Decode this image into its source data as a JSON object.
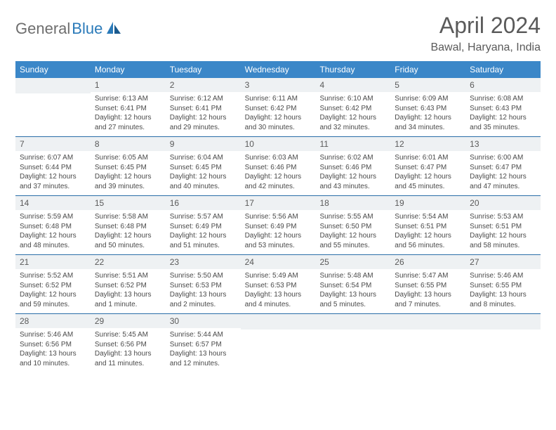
{
  "logo": {
    "part1": "General",
    "part2": "Blue"
  },
  "title": "April 2024",
  "location": "Bawal, Haryana, India",
  "colors": {
    "header_bg": "#3b87c8",
    "header_text": "#ffffff",
    "daynum_bg": "#eef1f3",
    "text": "#5a5a5a",
    "rule": "#2a6ea8",
    "logo_gray": "#6e6e6e",
    "logo_blue": "#2a7ab9"
  },
  "day_headers": [
    "Sunday",
    "Monday",
    "Tuesday",
    "Wednesday",
    "Thursday",
    "Friday",
    "Saturday"
  ],
  "weeks": [
    [
      {
        "blank": true
      },
      {
        "n": "1",
        "sr": "Sunrise: 6:13 AM",
        "ss": "Sunset: 6:41 PM",
        "dl": "Daylight: 12 hours and 27 minutes."
      },
      {
        "n": "2",
        "sr": "Sunrise: 6:12 AM",
        "ss": "Sunset: 6:41 PM",
        "dl": "Daylight: 12 hours and 29 minutes."
      },
      {
        "n": "3",
        "sr": "Sunrise: 6:11 AM",
        "ss": "Sunset: 6:42 PM",
        "dl": "Daylight: 12 hours and 30 minutes."
      },
      {
        "n": "4",
        "sr": "Sunrise: 6:10 AM",
        "ss": "Sunset: 6:42 PM",
        "dl": "Daylight: 12 hours and 32 minutes."
      },
      {
        "n": "5",
        "sr": "Sunrise: 6:09 AM",
        "ss": "Sunset: 6:43 PM",
        "dl": "Daylight: 12 hours and 34 minutes."
      },
      {
        "n": "6",
        "sr": "Sunrise: 6:08 AM",
        "ss": "Sunset: 6:43 PM",
        "dl": "Daylight: 12 hours and 35 minutes."
      }
    ],
    [
      {
        "n": "7",
        "sr": "Sunrise: 6:07 AM",
        "ss": "Sunset: 6:44 PM",
        "dl": "Daylight: 12 hours and 37 minutes."
      },
      {
        "n": "8",
        "sr": "Sunrise: 6:05 AM",
        "ss": "Sunset: 6:45 PM",
        "dl": "Daylight: 12 hours and 39 minutes."
      },
      {
        "n": "9",
        "sr": "Sunrise: 6:04 AM",
        "ss": "Sunset: 6:45 PM",
        "dl": "Daylight: 12 hours and 40 minutes."
      },
      {
        "n": "10",
        "sr": "Sunrise: 6:03 AM",
        "ss": "Sunset: 6:46 PM",
        "dl": "Daylight: 12 hours and 42 minutes."
      },
      {
        "n": "11",
        "sr": "Sunrise: 6:02 AM",
        "ss": "Sunset: 6:46 PM",
        "dl": "Daylight: 12 hours and 43 minutes."
      },
      {
        "n": "12",
        "sr": "Sunrise: 6:01 AM",
        "ss": "Sunset: 6:47 PM",
        "dl": "Daylight: 12 hours and 45 minutes."
      },
      {
        "n": "13",
        "sr": "Sunrise: 6:00 AM",
        "ss": "Sunset: 6:47 PM",
        "dl": "Daylight: 12 hours and 47 minutes."
      }
    ],
    [
      {
        "n": "14",
        "sr": "Sunrise: 5:59 AM",
        "ss": "Sunset: 6:48 PM",
        "dl": "Daylight: 12 hours and 48 minutes."
      },
      {
        "n": "15",
        "sr": "Sunrise: 5:58 AM",
        "ss": "Sunset: 6:48 PM",
        "dl": "Daylight: 12 hours and 50 minutes."
      },
      {
        "n": "16",
        "sr": "Sunrise: 5:57 AM",
        "ss": "Sunset: 6:49 PM",
        "dl": "Daylight: 12 hours and 51 minutes."
      },
      {
        "n": "17",
        "sr": "Sunrise: 5:56 AM",
        "ss": "Sunset: 6:49 PM",
        "dl": "Daylight: 12 hours and 53 minutes."
      },
      {
        "n": "18",
        "sr": "Sunrise: 5:55 AM",
        "ss": "Sunset: 6:50 PM",
        "dl": "Daylight: 12 hours and 55 minutes."
      },
      {
        "n": "19",
        "sr": "Sunrise: 5:54 AM",
        "ss": "Sunset: 6:51 PM",
        "dl": "Daylight: 12 hours and 56 minutes."
      },
      {
        "n": "20",
        "sr": "Sunrise: 5:53 AM",
        "ss": "Sunset: 6:51 PM",
        "dl": "Daylight: 12 hours and 58 minutes."
      }
    ],
    [
      {
        "n": "21",
        "sr": "Sunrise: 5:52 AM",
        "ss": "Sunset: 6:52 PM",
        "dl": "Daylight: 12 hours and 59 minutes."
      },
      {
        "n": "22",
        "sr": "Sunrise: 5:51 AM",
        "ss": "Sunset: 6:52 PM",
        "dl": "Daylight: 13 hours and 1 minute."
      },
      {
        "n": "23",
        "sr": "Sunrise: 5:50 AM",
        "ss": "Sunset: 6:53 PM",
        "dl": "Daylight: 13 hours and 2 minutes."
      },
      {
        "n": "24",
        "sr": "Sunrise: 5:49 AM",
        "ss": "Sunset: 6:53 PM",
        "dl": "Daylight: 13 hours and 4 minutes."
      },
      {
        "n": "25",
        "sr": "Sunrise: 5:48 AM",
        "ss": "Sunset: 6:54 PM",
        "dl": "Daylight: 13 hours and 5 minutes."
      },
      {
        "n": "26",
        "sr": "Sunrise: 5:47 AM",
        "ss": "Sunset: 6:55 PM",
        "dl": "Daylight: 13 hours and 7 minutes."
      },
      {
        "n": "27",
        "sr": "Sunrise: 5:46 AM",
        "ss": "Sunset: 6:55 PM",
        "dl": "Daylight: 13 hours and 8 minutes."
      }
    ],
    [
      {
        "n": "28",
        "sr": "Sunrise: 5:46 AM",
        "ss": "Sunset: 6:56 PM",
        "dl": "Daylight: 13 hours and 10 minutes."
      },
      {
        "n": "29",
        "sr": "Sunrise: 5:45 AM",
        "ss": "Sunset: 6:56 PM",
        "dl": "Daylight: 13 hours and 11 minutes."
      },
      {
        "n": "30",
        "sr": "Sunrise: 5:44 AM",
        "ss": "Sunset: 6:57 PM",
        "dl": "Daylight: 13 hours and 12 minutes."
      },
      {
        "blank": true
      },
      {
        "blank": true
      },
      {
        "blank": true
      },
      {
        "blank": true
      }
    ]
  ]
}
